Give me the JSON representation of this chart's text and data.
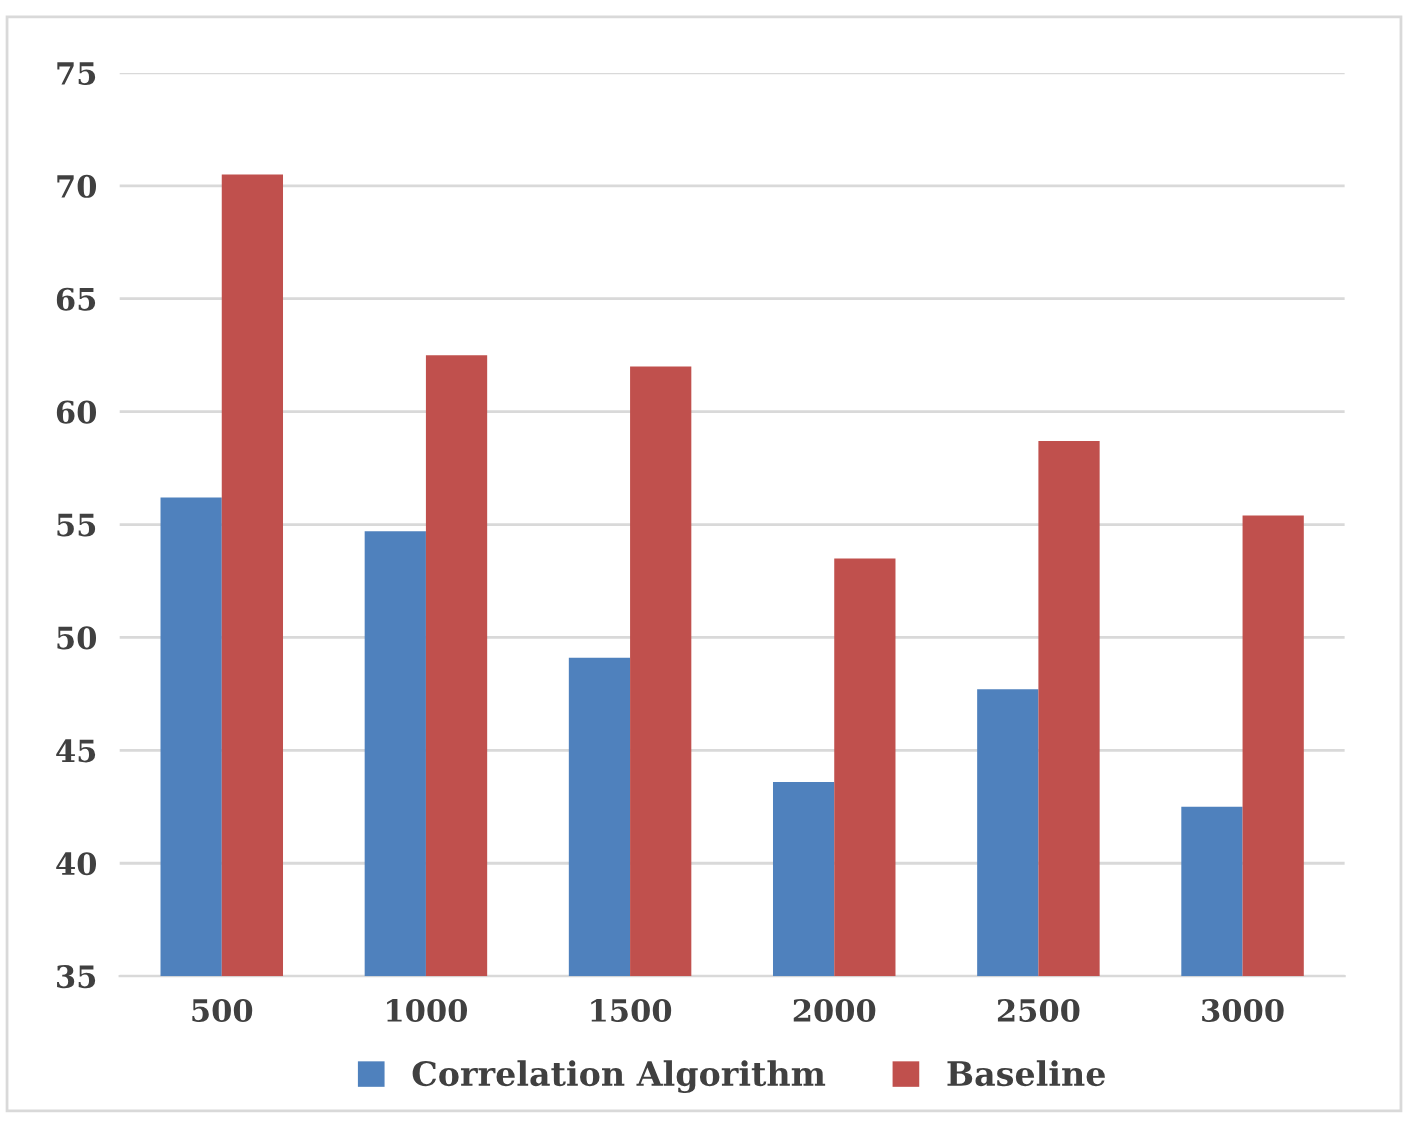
{
  "chart_data": {
    "type": "bar",
    "categories": [
      "500",
      "1000",
      "1500",
      "2000",
      "2500",
      "3000"
    ],
    "series": [
      {
        "name": "Correlation Algorithm",
        "color": "#4f81bd",
        "values": [
          56.2,
          54.7,
          49.1,
          43.6,
          47.7,
          42.5
        ]
      },
      {
        "name": "Baseline",
        "color": "#c0504d",
        "values": [
          70.5,
          62.5,
          62.0,
          53.5,
          58.7,
          55.4
        ]
      }
    ],
    "ylim": [
      35,
      75
    ],
    "yticks": [
      35,
      40,
      45,
      50,
      55,
      60,
      65,
      70,
      75
    ],
    "grid": "y",
    "legend": "bottom"
  }
}
